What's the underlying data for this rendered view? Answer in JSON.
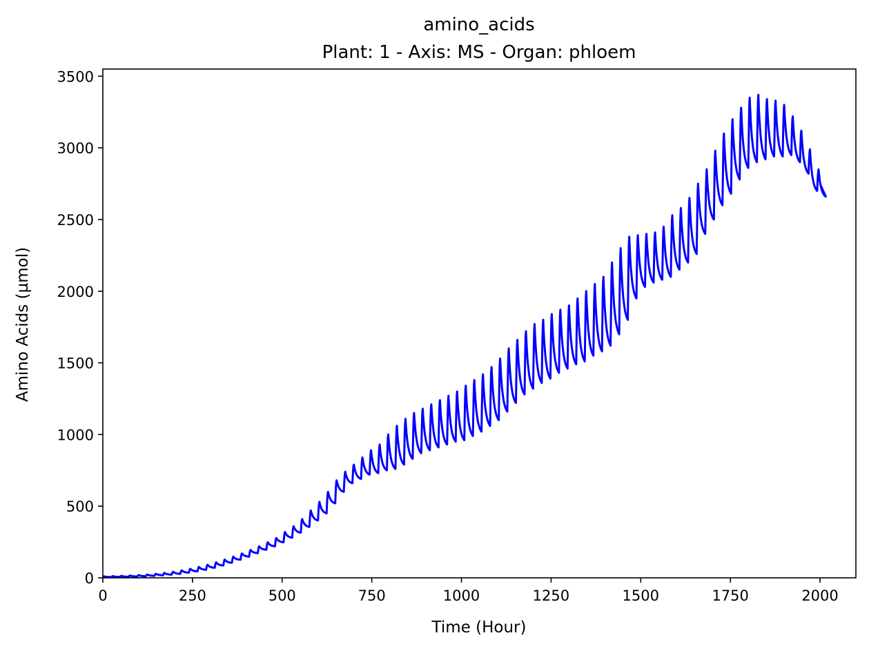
{
  "chart_data": {
    "type": "line",
    "title": "amino_acids",
    "subtitle": "Plant: 1 - Axis: MS - Organ: phloem",
    "xlabel": "Time (Hour)",
    "ylabel": "Amino Acids (µmol)",
    "xlim": [
      0,
      2100
    ],
    "ylim": [
      0,
      3550
    ],
    "xticks": [
      0,
      250,
      500,
      750,
      1000,
      1250,
      1500,
      1750,
      2000
    ],
    "yticks": [
      0,
      500,
      1000,
      1500,
      2000,
      2500,
      3000,
      3500
    ],
    "grid": false,
    "legend": "none",
    "series": [
      {
        "color": "#0000ff",
        "sampling": "one daily cycle (24 h); each entry is [hour, daily maximum, daily minimum]; the curve rises over ~4 h to the maximum, then decays to the minimum at the end of the day",
        "daily_cycles": [
          [
            0,
            10,
            5
          ],
          [
            24,
            12,
            6
          ],
          [
            48,
            14,
            7
          ],
          [
            72,
            16,
            9
          ],
          [
            96,
            19,
            11
          ],
          [
            120,
            23,
            14
          ],
          [
            144,
            28,
            18
          ],
          [
            168,
            34,
            22
          ],
          [
            192,
            42,
            28
          ],
          [
            216,
            52,
            36
          ],
          [
            240,
            63,
            45
          ],
          [
            264,
            76,
            56
          ],
          [
            288,
            91,
            70
          ],
          [
            312,
            108,
            86
          ],
          [
            336,
            127,
            105
          ],
          [
            360,
            148,
            126
          ],
          [
            384,
            170,
            148
          ],
          [
            408,
            195,
            172
          ],
          [
            432,
            220,
            196
          ],
          [
            456,
            248,
            220
          ],
          [
            480,
            278,
            248
          ],
          [
            504,
            320,
            280
          ],
          [
            528,
            360,
            315
          ],
          [
            552,
            410,
            355
          ],
          [
            576,
            470,
            400
          ],
          [
            600,
            530,
            450
          ],
          [
            624,
            600,
            520
          ],
          [
            648,
            680,
            600
          ],
          [
            672,
            740,
            660
          ],
          [
            696,
            790,
            690
          ],
          [
            720,
            840,
            720
          ],
          [
            744,
            890,
            730
          ],
          [
            768,
            930,
            750
          ],
          [
            792,
            1000,
            760
          ],
          [
            816,
            1060,
            790
          ],
          [
            840,
            1110,
            830
          ],
          [
            864,
            1150,
            870
          ],
          [
            888,
            1180,
            890
          ],
          [
            912,
            1210,
            910
          ],
          [
            936,
            1240,
            930
          ],
          [
            960,
            1270,
            950
          ],
          [
            984,
            1300,
            960
          ],
          [
            1008,
            1340,
            990
          ],
          [
            1032,
            1380,
            1020
          ],
          [
            1056,
            1420,
            1060
          ],
          [
            1080,
            1470,
            1100
          ],
          [
            1104,
            1530,
            1160
          ],
          [
            1128,
            1600,
            1220
          ],
          [
            1152,
            1660,
            1280
          ],
          [
            1176,
            1720,
            1320
          ],
          [
            1200,
            1770,
            1360
          ],
          [
            1224,
            1800,
            1390
          ],
          [
            1248,
            1840,
            1430
          ],
          [
            1272,
            1870,
            1460
          ],
          [
            1296,
            1900,
            1490
          ],
          [
            1320,
            1950,
            1510
          ],
          [
            1344,
            2000,
            1550
          ],
          [
            1368,
            2050,
            1580
          ],
          [
            1392,
            2100,
            1620
          ],
          [
            1416,
            2200,
            1700
          ],
          [
            1440,
            2300,
            1800
          ],
          [
            1464,
            2380,
            1950
          ],
          [
            1488,
            2390,
            2030
          ],
          [
            1512,
            2400,
            2060
          ],
          [
            1536,
            2410,
            2080
          ],
          [
            1560,
            2450,
            2100
          ],
          [
            1584,
            2530,
            2150
          ],
          [
            1608,
            2580,
            2200
          ],
          [
            1632,
            2650,
            2260
          ],
          [
            1656,
            2750,
            2400
          ],
          [
            1680,
            2850,
            2500
          ],
          [
            1704,
            2980,
            2600
          ],
          [
            1728,
            3100,
            2680
          ],
          [
            1752,
            3200,
            2780
          ],
          [
            1776,
            3280,
            2860
          ],
          [
            1800,
            3350,
            2900
          ],
          [
            1824,
            3370,
            2920
          ],
          [
            1848,
            3340,
            2940
          ],
          [
            1872,
            3330,
            2940
          ],
          [
            1896,
            3300,
            2950
          ],
          [
            1920,
            3220,
            2900
          ],
          [
            1944,
            3120,
            2820
          ],
          [
            1968,
            2990,
            2700
          ],
          [
            1992,
            2850,
            2660
          ]
        ],
        "end": [
          2000,
          2750
        ]
      }
    ]
  }
}
